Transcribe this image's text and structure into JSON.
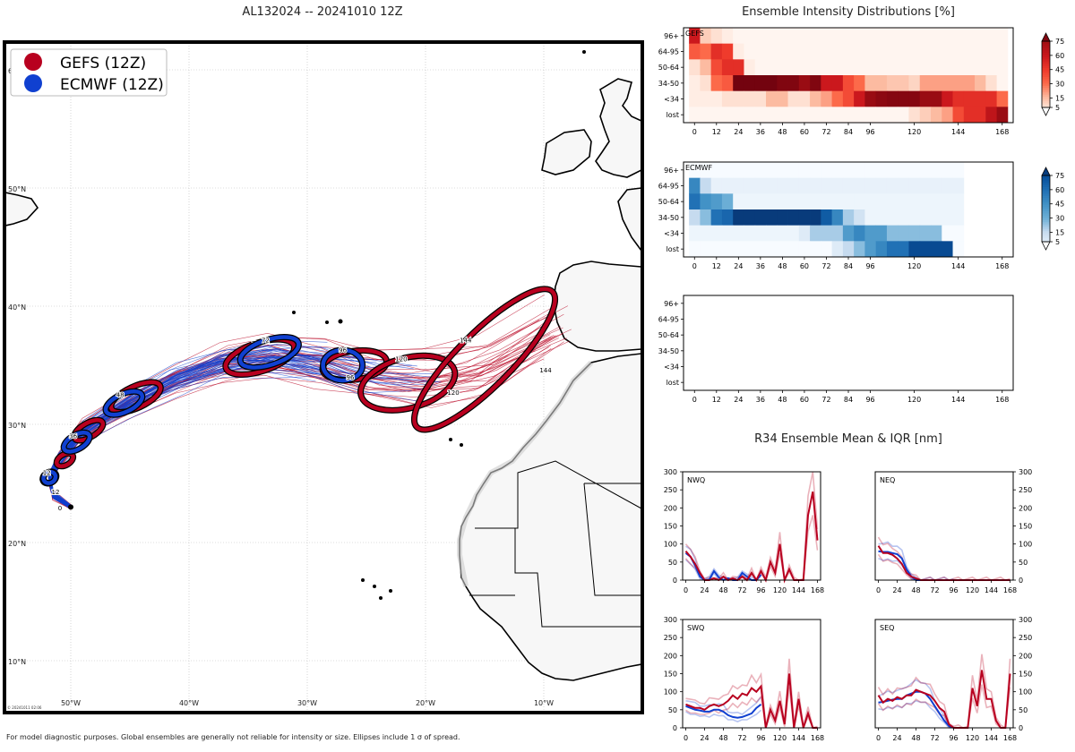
{
  "colors": {
    "gefs": "#b8001f",
    "ecmwf": "#1040d0",
    "ocean": "#ffffff",
    "land": "#f8f8f8"
  },
  "title": "AL132024 -- 20241010 12Z",
  "intensity_title": "Ensemble Intensity Distributions [%]",
  "r34_title": "R34 Ensemble Mean & IQR [nm]",
  "footnote": "For model diagnostic purposes. Global ensembles are generally not reliable for intensity or size. Ellipses include 1 σ of spread.",
  "map_stamp": "© 20241011 02:06",
  "legend": [
    {
      "label": "GEFS (12Z)",
      "icon": "circle-icon"
    },
    {
      "label": "ECMWF (12Z)",
      "icon": "circle-icon"
    }
  ],
  "map_lat_labels": [
    "60°N",
    "50°N",
    "40°N",
    "30°N",
    "20°N",
    "10°N"
  ],
  "map_lon_labels": [
    "50°W",
    "40°W",
    "30°W",
    "20°W",
    "10°W"
  ],
  "chart_data": [
    {
      "type": "line",
      "title": "AL132024 -- 20241010 12Z",
      "description": "Ensemble track map (lon/lat)",
      "xlim": [
        -55,
        -1
      ],
      "ylim": [
        5,
        63
      ],
      "gefs_mean_track": {
        "lon": [
          -50,
          -51.5,
          -51.8,
          -51,
          -49,
          -45,
          -41,
          -37,
          -33,
          -29,
          -25,
          -20,
          -15,
          -9
        ],
        "lat": [
          23,
          24,
          25.5,
          27,
          29.5,
          32,
          34,
          35.5,
          36,
          35.5,
          34.5,
          34,
          35,
          38.5
        ]
      },
      "ellipse_hours": [
        12,
        24,
        36,
        48,
        72,
        96,
        120,
        144
      ],
      "ellipse_labels": [
        "0",
        "12",
        "24",
        "36",
        "48",
        "72",
        "96",
        "120",
        "144"
      ]
    },
    {
      "type": "heatmap",
      "name": "GEFS",
      "colormap": "Reds",
      "ylabels": [
        "96+",
        "64-95",
        "50-64",
        "34-50",
        "<34",
        "lost"
      ],
      "xticks": [
        0,
        12,
        24,
        36,
        48,
        60,
        72,
        84,
        96,
        120,
        144,
        168
      ],
      "hours": [
        0,
        6,
        12,
        18,
        24,
        30,
        36,
        42,
        48,
        54,
        60,
        66,
        72,
        78,
        84,
        90,
        96,
        102,
        108,
        114,
        120,
        126,
        132,
        138,
        144,
        150,
        156,
        162,
        168
      ],
      "values": [
        [
          60,
          10,
          5,
          2,
          0,
          0,
          0,
          0,
          0,
          0,
          0,
          0,
          0,
          0,
          0,
          0,
          0,
          0,
          0,
          0,
          0,
          0,
          0,
          0,
          0,
          0,
          0,
          0,
          0
        ],
        [
          35,
          30,
          50,
          45,
          2,
          0,
          0,
          0,
          0,
          0,
          0,
          0,
          0,
          0,
          0,
          0,
          0,
          0,
          0,
          0,
          0,
          0,
          0,
          0,
          0,
          0,
          0,
          0,
          0
        ],
        [
          5,
          15,
          40,
          50,
          50,
          2,
          0,
          0,
          0,
          0,
          0,
          0,
          0,
          0,
          0,
          0,
          0,
          0,
          0,
          0,
          0,
          0,
          0,
          0,
          0,
          0,
          0,
          0,
          0
        ],
        [
          2,
          5,
          30,
          35,
          95,
          95,
          95,
          95,
          90,
          90,
          80,
          90,
          60,
          60,
          40,
          30,
          15,
          15,
          12,
          12,
          8,
          20,
          20,
          20,
          20,
          20,
          15,
          5,
          0
        ],
        [
          2,
          2,
          2,
          5,
          5,
          5,
          5,
          15,
          15,
          5,
          5,
          15,
          20,
          30,
          40,
          60,
          80,
          85,
          88,
          88,
          88,
          80,
          80,
          60,
          50,
          50,
          50,
          50,
          30
        ],
        [
          0,
          0,
          0,
          0,
          0,
          0,
          0,
          0,
          0,
          0,
          0,
          0,
          0,
          0,
          0,
          0,
          0,
          0,
          0,
          0,
          5,
          10,
          15,
          20,
          40,
          50,
          50,
          65,
          80
        ]
      ],
      "colorbar": {
        "ticks": [
          5,
          15,
          30,
          45,
          60,
          75
        ]
      }
    },
    {
      "type": "heatmap",
      "name": "ECMWF",
      "colormap": "Blues",
      "ylabels": [
        "96+",
        "64-95",
        "50-64",
        "34-50",
        "<34",
        "lost"
      ],
      "xticks": [
        0,
        12,
        24,
        36,
        48,
        60,
        72,
        84,
        96,
        120,
        144,
        168
      ],
      "hours": [
        0,
        6,
        12,
        18,
        24,
        30,
        36,
        42,
        48,
        54,
        60,
        66,
        72,
        78,
        84,
        90,
        96,
        102,
        108,
        114,
        120,
        126,
        132,
        138,
        144
      ],
      "values": [
        [
          0,
          0,
          0,
          0,
          0,
          0,
          0,
          0,
          0,
          0,
          0,
          0,
          0,
          0,
          0,
          0,
          0,
          0,
          0,
          0,
          0,
          0,
          0,
          0,
          0
        ],
        [
          50,
          15,
          3,
          3,
          3,
          3,
          3,
          3,
          3,
          3,
          3,
          3,
          3,
          3,
          3,
          3,
          3,
          3,
          3,
          3,
          3,
          3,
          3,
          3,
          3
        ],
        [
          60,
          45,
          40,
          30,
          2,
          2,
          2,
          2,
          2,
          2,
          2,
          2,
          2,
          2,
          2,
          2,
          2,
          2,
          2,
          2,
          2,
          2,
          2,
          2,
          2
        ],
        [
          15,
          25,
          60,
          65,
          92,
          92,
          92,
          92,
          92,
          92,
          92,
          92,
          70,
          50,
          20,
          10,
          2,
          2,
          2,
          2,
          2,
          2,
          2,
          2,
          2
        ],
        [
          2,
          2,
          2,
          2,
          2,
          2,
          2,
          2,
          2,
          2,
          5,
          20,
          20,
          20,
          40,
          50,
          40,
          40,
          25,
          25,
          25,
          25,
          25,
          0,
          0
        ],
        [
          0,
          0,
          0,
          0,
          0,
          0,
          0,
          0,
          0,
          0,
          0,
          0,
          0,
          5,
          15,
          25,
          40,
          50,
          60,
          60,
          80,
          80,
          80,
          80,
          0
        ]
      ],
      "colorbar": {
        "ticks": [
          5,
          15,
          30,
          45,
          60,
          75
        ]
      }
    },
    {
      "type": "heatmap",
      "name": "(empty)",
      "ylabels": [
        "96+",
        "64-95",
        "50-64",
        "34-50",
        "<34",
        "lost"
      ],
      "xticks": [
        0,
        12,
        24,
        36,
        48,
        60,
        72,
        84,
        96,
        120,
        144,
        168
      ],
      "values": []
    },
    {
      "type": "line",
      "name": "NWQ",
      "ylim": [
        0,
        300
      ],
      "xlim": [
        -4,
        172
      ],
      "xticks": [
        0,
        24,
        48,
        72,
        96,
        120,
        144,
        168
      ],
      "yticks": [
        0,
        50,
        100,
        150,
        200,
        250,
        300
      ],
      "yaxis_side": "left",
      "series": [
        {
          "name": "ECMWF mean",
          "x": [
            0,
            6,
            12,
            18,
            24,
            30,
            36,
            42,
            48,
            54,
            60,
            66,
            72,
            78,
            84,
            90,
            96
          ],
          "y": [
            75,
            65,
            40,
            10,
            0,
            2,
            25,
            8,
            0,
            5,
            0,
            0,
            20,
            10,
            0,
            0,
            15
          ]
        },
        {
          "name": "GEFS mean",
          "x": [
            0,
            6,
            12,
            18,
            24,
            30,
            36,
            42,
            48,
            54,
            60,
            66,
            72,
            78,
            84,
            90,
            96,
            102,
            108,
            114,
            120,
            126,
            132,
            138,
            144,
            150,
            156,
            162,
            168
          ],
          "y": [
            80,
            65,
            45,
            20,
            0,
            0,
            5,
            0,
            10,
            0,
            5,
            0,
            10,
            0,
            20,
            0,
            25,
            0,
            50,
            20,
            100,
            0,
            30,
            0,
            0,
            0,
            180,
            245,
            110
          ]
        }
      ]
    },
    {
      "type": "line",
      "name": "NEQ",
      "ylim": [
        0,
        300
      ],
      "xlim": [
        -4,
        172
      ],
      "xticks": [
        0,
        24,
        48,
        72,
        96,
        120,
        144,
        168
      ],
      "yticks": [
        0,
        50,
        100,
        150,
        200,
        250,
        300
      ],
      "yaxis_side": "right",
      "series": [
        {
          "name": "ECMWF mean",
          "x": [
            0,
            6,
            12,
            18,
            24,
            30,
            36,
            42,
            48,
            54,
            60,
            66,
            72,
            78,
            84,
            90,
            96
          ],
          "y": [
            80,
            78,
            78,
            75,
            72,
            60,
            30,
            10,
            0,
            0,
            0,
            0,
            0,
            0,
            0,
            0,
            0
          ]
        },
        {
          "name": "GEFS mean",
          "x": [
            0,
            6,
            12,
            18,
            24,
            30,
            36,
            42,
            48,
            54,
            60,
            66,
            72,
            78,
            84,
            90,
            96,
            102,
            108,
            114,
            120,
            126,
            132,
            138,
            144,
            150,
            156,
            162,
            168
          ],
          "y": [
            95,
            75,
            75,
            70,
            60,
            45,
            20,
            10,
            5,
            0,
            0,
            0,
            0,
            0,
            0,
            0,
            0,
            0,
            0,
            0,
            0,
            0,
            0,
            0,
            0,
            0,
            0,
            0,
            0
          ]
        }
      ]
    },
    {
      "type": "line",
      "name": "SWQ",
      "ylim": [
        0,
        300
      ],
      "xlim": [
        -4,
        172
      ],
      "xticks": [
        0,
        24,
        48,
        72,
        96,
        120,
        144,
        168
      ],
      "yticks": [
        0,
        50,
        100,
        150,
        200,
        250,
        300
      ],
      "yaxis_side": "left",
      "series": [
        {
          "name": "ECMWF mean",
          "x": [
            0,
            6,
            12,
            18,
            24,
            30,
            36,
            42,
            48,
            54,
            60,
            66,
            72,
            78,
            84,
            90,
            96
          ],
          "y": [
            60,
            55,
            50,
            48,
            45,
            45,
            50,
            50,
            45,
            35,
            30,
            28,
            30,
            35,
            40,
            55,
            65
          ]
        },
        {
          "name": "GEFS mean",
          "x": [
            0,
            6,
            12,
            18,
            24,
            30,
            36,
            42,
            48,
            54,
            60,
            66,
            72,
            78,
            84,
            90,
            96,
            102,
            108,
            114,
            120,
            126,
            132,
            138,
            144,
            150,
            156,
            162,
            168
          ],
          "y": [
            65,
            60,
            55,
            55,
            50,
            60,
            65,
            60,
            65,
            75,
            90,
            80,
            95,
            90,
            110,
            100,
            115,
            0,
            50,
            20,
            75,
            10,
            150,
            0,
            80,
            0,
            40,
            0,
            0
          ]
        }
      ]
    },
    {
      "type": "line",
      "name": "SEQ",
      "ylim": [
        0,
        300
      ],
      "xlim": [
        -4,
        172
      ],
      "xticks": [
        0,
        24,
        48,
        72,
        96,
        120,
        144,
        168
      ],
      "yticks": [
        0,
        50,
        100,
        150,
        200,
        250,
        300
      ],
      "yaxis_side": "right",
      "series": [
        {
          "name": "ECMWF mean",
          "x": [
            0,
            6,
            12,
            18,
            24,
            30,
            36,
            42,
            48,
            54,
            60,
            66,
            72,
            78,
            84,
            90,
            96
          ],
          "y": [
            70,
            72,
            75,
            78,
            80,
            80,
            90,
            95,
            100,
            100,
            95,
            80,
            60,
            40,
            20,
            5,
            0
          ]
        },
        {
          "name": "GEFS mean",
          "x": [
            0,
            6,
            12,
            18,
            24,
            30,
            36,
            42,
            48,
            54,
            60,
            66,
            72,
            78,
            84,
            90,
            96,
            102,
            108,
            114,
            120,
            126,
            132,
            138,
            144,
            150,
            156,
            162,
            168
          ],
          "y": [
            90,
            70,
            80,
            75,
            85,
            80,
            90,
            90,
            105,
            100,
            95,
            90,
            75,
            55,
            45,
            10,
            0,
            0,
            0,
            0,
            110,
            60,
            160,
            80,
            80,
            20,
            0,
            0,
            150
          ]
        }
      ]
    }
  ]
}
